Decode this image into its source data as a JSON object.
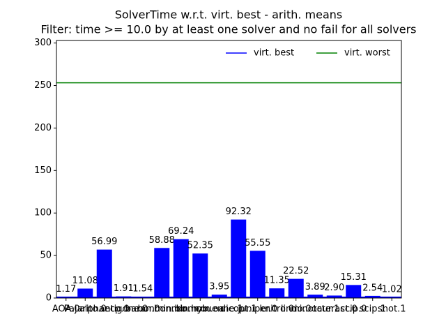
{
  "chart_data": {
    "type": "bar",
    "title": "SolverTime w.r.t. virt. best - arith. means",
    "subtitle": "Filter: time >= 10.0 by at least one solver and no fail for all solvers",
    "categories": [
      "AOA.0",
      "Pajarito.0",
      "alphaecp.0",
      "antigone.0",
      "baron.0",
      "bonmin.bb",
      "bonmin.hyb",
      "bonmin.oa",
      "couenne.1",
      "dicopt.1",
      "juniper.0",
      "knitro.0",
      "lindo.0",
      "minotaur.1",
      "octeract.0",
      "scip.0",
      "scip.1",
      "shot.1"
    ],
    "values": [
      1.17,
      11.08,
      56.99,
      1.91,
      1.54,
      58.88,
      69.24,
      52.35,
      3.95,
      92.32,
      55.55,
      11.35,
      22.52,
      3.89,
      2.9,
      15.31,
      2.54,
      1.02
    ],
    "value_labels": [
      "1.17",
      "11.08",
      "56.99",
      "1.91",
      "1.54",
      "58.88",
      "69.24",
      "52.35",
      "3.95",
      "92.32",
      "55.55",
      "11.35",
      "22.52",
      "3.89",
      "2.90",
      "15.31",
      "2.54",
      "1.02"
    ],
    "color": "#0000ff",
    "lines": [
      {
        "name": "virt. best",
        "color": "#0000ff",
        "value": 1
      },
      {
        "name": "virt. worst",
        "color": "#008000",
        "value": 253.2
      }
    ],
    "ylim": [
      0,
      303
    ],
    "yticks": [
      0,
      50,
      100,
      150,
      200,
      250,
      300
    ],
    "legend": "upper right"
  }
}
